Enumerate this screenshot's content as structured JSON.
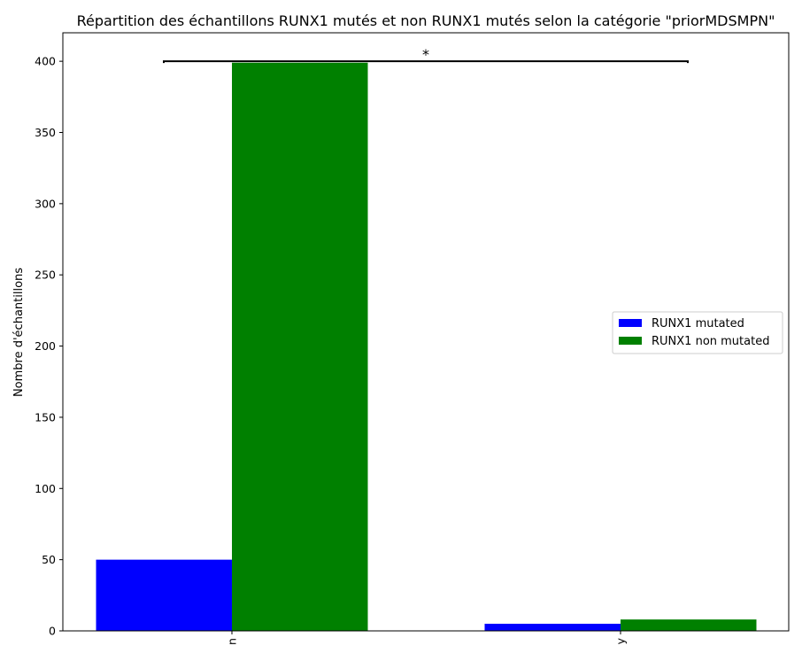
{
  "chart_data": {
    "type": "bar",
    "title": "Répartition des échantillons RUNX1 mutés et non RUNX1 mutés selon la catégorie \"priorMDSMPN\"",
    "xlabel": "",
    "ylabel": "Nombre d'échantillons",
    "categories": [
      "n",
      "y"
    ],
    "series": [
      {
        "name": "RUNX1 mutated",
        "color": "#0000ff",
        "values": [
          50,
          5
        ]
      },
      {
        "name": "RUNX1 non mutated",
        "color": "#008000",
        "values": [
          399,
          8
        ]
      }
    ],
    "ylim": [
      0,
      420
    ],
    "yticks": [
      0,
      50,
      100,
      150,
      200,
      250,
      300,
      350,
      400
    ],
    "grid": false,
    "legend_position": "center-right",
    "x_tick_rotation": "vertical",
    "annotation": {
      "text": "*",
      "type": "significance-bracket",
      "between": [
        "n",
        "y"
      ],
      "y": 400
    }
  }
}
